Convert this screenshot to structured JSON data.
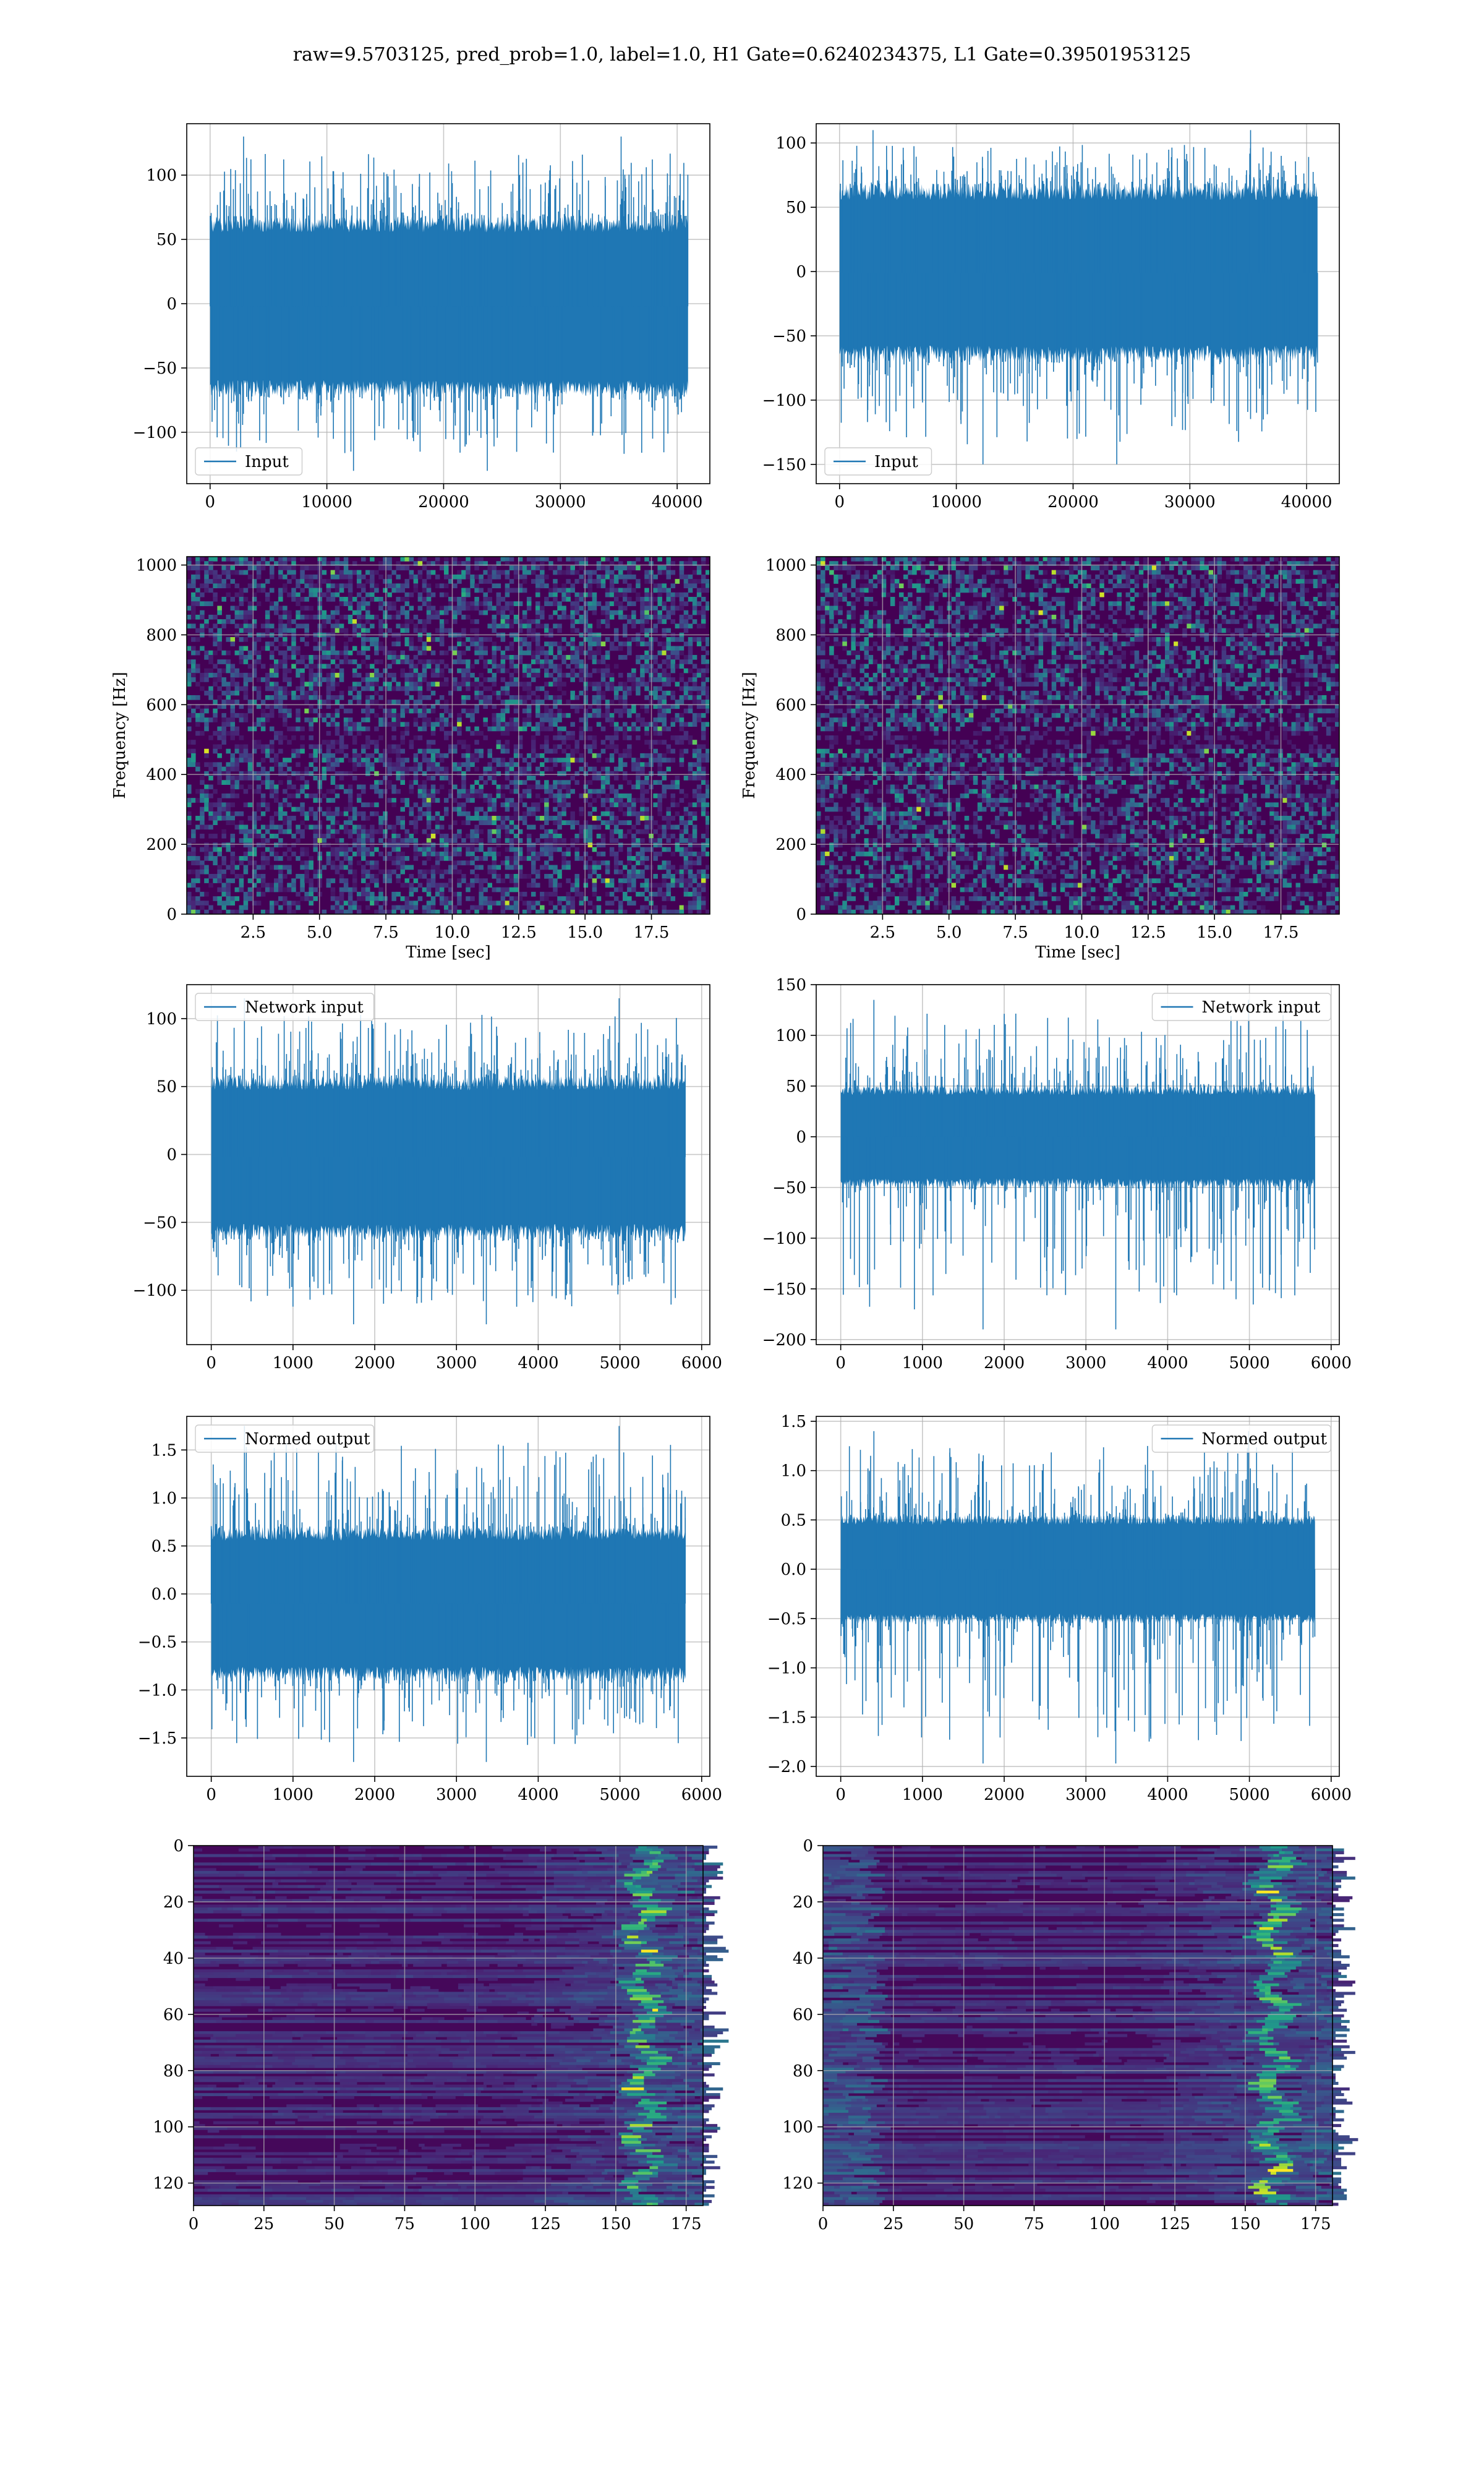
{
  "suptitle": "raw=9.5703125, pred_prob=1.0, label=1.0, H1 Gate=0.6240234375, L1 Gate=0.39501953125",
  "colors": {
    "series": "#1f77b4",
    "grid": "#b0b0b0",
    "viridis_low": "#440154",
    "viridis_high": "#fde725"
  },
  "chart_data": [
    {
      "id": "h1-input",
      "type": "line",
      "detector": "H1",
      "legend": "Input",
      "legend_loc": "lower left",
      "xlim": [
        -2000,
        42800
      ],
      "ylim": [
        -140,
        140
      ],
      "signal_range": [
        -72,
        68
      ],
      "signal_max": 130,
      "signal_min": -130,
      "xticks": [
        0,
        10000,
        20000,
        30000,
        40000
      ],
      "xtick_labels": [
        "0",
        "10000",
        "20000",
        "30000",
        "40000"
      ],
      "yticks": [
        -100,
        -50,
        0,
        50,
        100
      ],
      "ytick_labels": [
        "−100",
        "−50",
        "0",
        "50",
        "100"
      ],
      "n_samples": 40960,
      "grid": true
    },
    {
      "id": "l1-input",
      "type": "line",
      "detector": "L1",
      "legend": "Input",
      "legend_loc": "lower left",
      "xlim": [
        -2000,
        42800
      ],
      "ylim": [
        -165,
        115
      ],
      "signal_range": [
        -70,
        68
      ],
      "signal_max": 110,
      "signal_min": -150,
      "xticks": [
        0,
        10000,
        20000,
        30000,
        40000
      ],
      "xtick_labels": [
        "0",
        "10000",
        "20000",
        "30000",
        "40000"
      ],
      "yticks": [
        -150,
        -100,
        -50,
        0,
        50,
        100
      ],
      "ytick_labels": [
        "−150",
        "−100",
        "−50",
        "0",
        "50",
        "100"
      ],
      "n_samples": 40960,
      "grid": true
    },
    {
      "id": "h1-spectrogram",
      "type": "heatmap",
      "detector": "H1",
      "xlabel": "Time [sec]",
      "ylabel": "Frequency [Hz]",
      "xlim": [
        0,
        19.7
      ],
      "ylim": [
        0,
        1024
      ],
      "xticks": [
        2.5,
        5.0,
        7.5,
        10.0,
        12.5,
        15.0,
        17.5
      ],
      "xtick_labels": [
        "2.5",
        "5.0",
        "7.5",
        "10.0",
        "12.5",
        "15.0",
        "17.5"
      ],
      "yticks": [
        0,
        200,
        400,
        600,
        800,
        1000
      ],
      "ytick_labels": [
        "0",
        "200",
        "400",
        "600",
        "800",
        "1000"
      ],
      "colormap": "viridis",
      "grid": true
    },
    {
      "id": "l1-spectrogram",
      "type": "heatmap",
      "detector": "L1",
      "xlabel": "Time [sec]",
      "ylabel": "Frequency [Hz]",
      "xlim": [
        0,
        19.7
      ],
      "ylim": [
        0,
        1024
      ],
      "xticks": [
        2.5,
        5.0,
        7.5,
        10.0,
        12.5,
        15.0,
        17.5
      ],
      "xtick_labels": [
        "2.5",
        "5.0",
        "7.5",
        "10.0",
        "12.5",
        "15.0",
        "17.5"
      ],
      "yticks": [
        0,
        200,
        400,
        600,
        800,
        1000
      ],
      "ytick_labels": [
        "0",
        "200",
        "400",
        "600",
        "800",
        "1000"
      ],
      "colormap": "viridis",
      "grid": true
    },
    {
      "id": "h1-network-input",
      "type": "line",
      "detector": "H1",
      "legend": "Network input",
      "legend_loc": "upper left",
      "xlim": [
        -300,
        6100
      ],
      "ylim": [
        -140,
        125
      ],
      "signal_range": [
        -62,
        58
      ],
      "signal_max": 115,
      "signal_min": -125,
      "xticks": [
        0,
        1000,
        2000,
        3000,
        4000,
        5000,
        6000
      ],
      "xtick_labels": [
        "0",
        "1000",
        "2000",
        "3000",
        "4000",
        "5000",
        "6000"
      ],
      "yticks": [
        -100,
        -50,
        0,
        50,
        100
      ],
      "ytick_labels": [
        "−100",
        "−50",
        "0",
        "50",
        "100"
      ],
      "n_samples": 5800,
      "grid": true
    },
    {
      "id": "l1-network-input",
      "type": "line",
      "detector": "L1",
      "legend": "Network input",
      "legend_loc": "upper right",
      "xlim": [
        -300,
        6100
      ],
      "ylim": [
        -205,
        150
      ],
      "signal_range": [
        -50,
        50
      ],
      "signal_max": 135,
      "signal_min": -190,
      "xticks": [
        0,
        1000,
        2000,
        3000,
        4000,
        5000,
        6000
      ],
      "xtick_labels": [
        "0",
        "1000",
        "2000",
        "3000",
        "4000",
        "5000",
        "6000"
      ],
      "yticks": [
        -200,
        -150,
        -100,
        -50,
        0,
        50,
        100,
        150
      ],
      "ytick_labels": [
        "−200",
        "−150",
        "−100",
        "−50",
        "0",
        "50",
        "100",
        "150"
      ],
      "n_samples": 5800,
      "grid": true
    },
    {
      "id": "h1-normed-output",
      "type": "line",
      "detector": "H1",
      "legend": "Normed output",
      "legend_loc": "upper left",
      "xlim": [
        -300,
        6100
      ],
      "ylim": [
        -1.9,
        1.85
      ],
      "signal_range": [
        -0.9,
        0.7
      ],
      "signal_max": 1.75,
      "signal_min": -1.75,
      "xticks": [
        0,
        1000,
        2000,
        3000,
        4000,
        5000,
        6000
      ],
      "xtick_labels": [
        "0",
        "1000",
        "2000",
        "3000",
        "4000",
        "5000",
        "6000"
      ],
      "yticks": [
        -1.5,
        -1.0,
        -0.5,
        0.0,
        0.5,
        1.0,
        1.5
      ],
      "ytick_labels": [
        "−1.5",
        "−1.0",
        "−0.5",
        "0.0",
        "0.5",
        "1.0",
        "1.5"
      ],
      "n_samples": 5800,
      "grid": true
    },
    {
      "id": "l1-normed-output",
      "type": "line",
      "detector": "L1",
      "legend": "Normed output",
      "legend_loc": "upper right",
      "xlim": [
        -300,
        6100
      ],
      "ylim": [
        -2.1,
        1.55
      ],
      "signal_range": [
        -0.55,
        0.55
      ],
      "signal_max": 1.4,
      "signal_min": -1.97,
      "xticks": [
        0,
        1000,
        2000,
        3000,
        4000,
        5000,
        6000
      ],
      "xtick_labels": [
        "0",
        "1000",
        "2000",
        "3000",
        "4000",
        "5000",
        "6000"
      ],
      "yticks": [
        -2.0,
        -1.5,
        -1.0,
        -0.5,
        0.0,
        0.5,
        1.0,
        1.5
      ],
      "ytick_labels": [
        "−2.0",
        "−1.5",
        "−1.0",
        "−0.5",
        "0.0",
        "0.5",
        "1.0",
        "1.5"
      ],
      "n_samples": 5800,
      "grid": true
    },
    {
      "id": "h1-feature-map",
      "type": "heatmap",
      "detector": "H1",
      "xlim": [
        0,
        181
      ],
      "ylim": [
        128,
        0
      ],
      "xticks": [
        0,
        25,
        50,
        75,
        100,
        125,
        150,
        175
      ],
      "xtick_labels": [
        "0",
        "25",
        "50",
        "75",
        "100",
        "125",
        "150",
        "175"
      ],
      "yticks": [
        0,
        20,
        40,
        60,
        80,
        100,
        120
      ],
      "ytick_labels": [
        "0",
        "20",
        "40",
        "60",
        "80",
        "100",
        "120"
      ],
      "colormap": "viridis",
      "grid": true
    },
    {
      "id": "l1-feature-map",
      "type": "heatmap",
      "detector": "L1",
      "xlim": [
        0,
        181
      ],
      "ylim": [
        128,
        0
      ],
      "xticks": [
        0,
        25,
        50,
        75,
        100,
        125,
        150,
        175
      ],
      "xtick_labels": [
        "0",
        "25",
        "50",
        "75",
        "100",
        "125",
        "150",
        "175"
      ],
      "yticks": [
        0,
        20,
        40,
        60,
        80,
        100,
        120
      ],
      "ytick_labels": [
        "0",
        "20",
        "40",
        "60",
        "80",
        "100",
        "120"
      ],
      "colormap": "viridis",
      "grid": true
    }
  ]
}
